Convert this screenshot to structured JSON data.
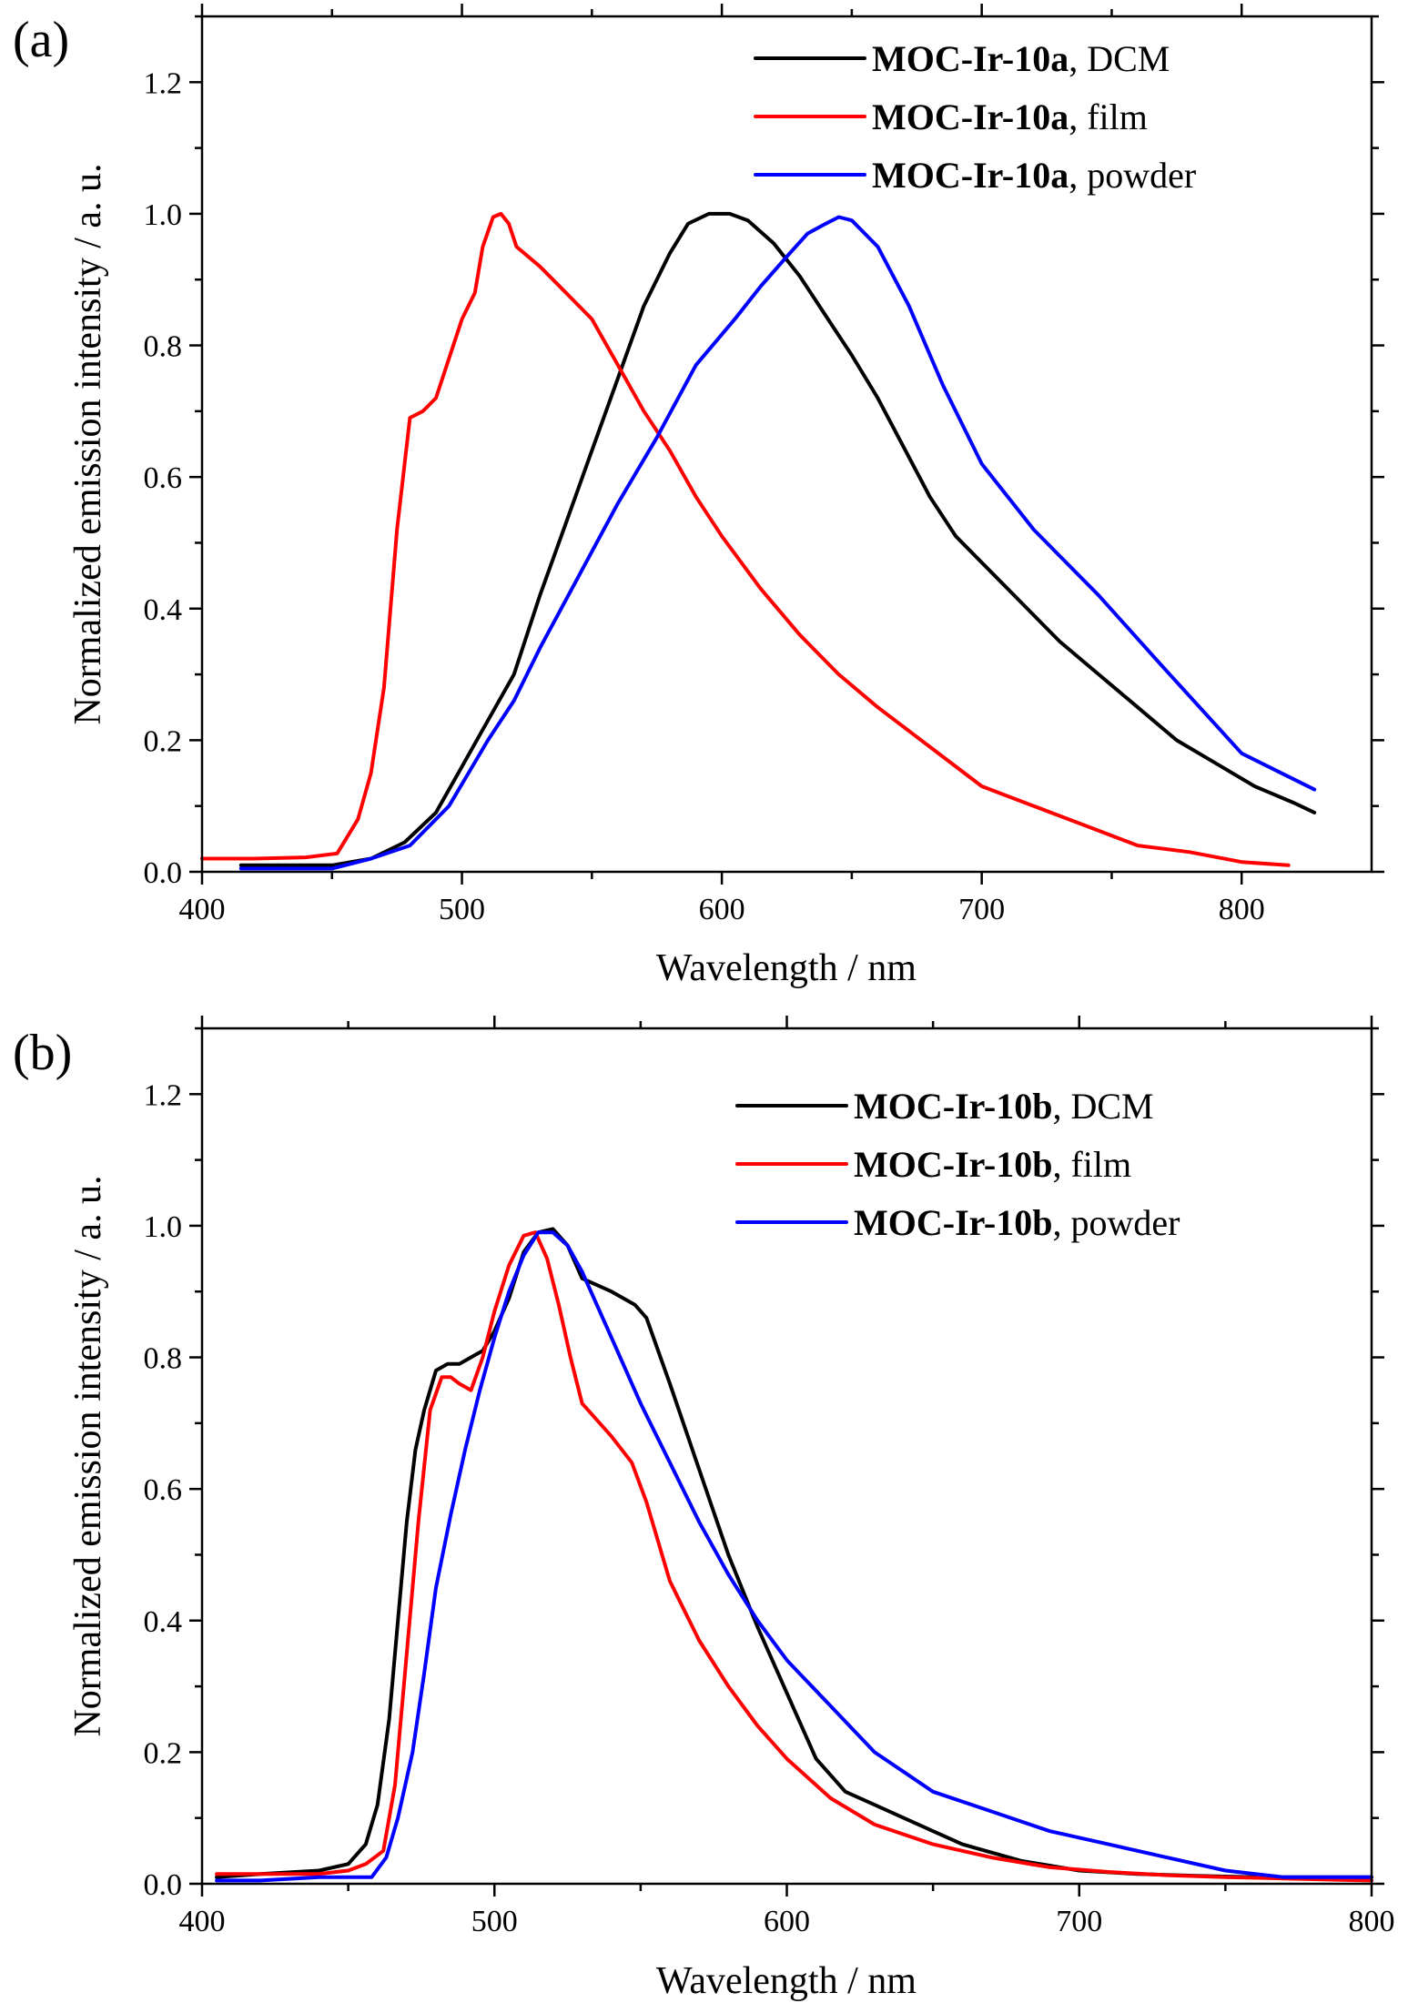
{
  "chart_data": [
    {
      "type": "line",
      "panel_label": "(a)",
      "xlabel": "Wavelength / nm",
      "ylabel": "Normalized emission intensity / a. u.",
      "xlim": [
        400,
        850
      ],
      "ylim": [
        0,
        1.3
      ],
      "xticks": [
        400,
        500,
        600,
        700,
        800
      ],
      "xtick_labels": [
        "400",
        "500",
        "600",
        "700",
        "800"
      ],
      "yticks": [
        0.0,
        0.2,
        0.4,
        0.6,
        0.8,
        1.0,
        1.2
      ],
      "ytick_labels": [
        "0.0",
        "0.2",
        "0.4",
        "0.6",
        "0.8",
        "1.0",
        "1.2"
      ],
      "legend_position": "top-right",
      "series": [
        {
          "name_bold": "MOC-Ir-10a",
          "name_suffix": ", DCM",
          "color": "#000000",
          "x": [
            415,
            430,
            450,
            465,
            478,
            490,
            500,
            510,
            520,
            530,
            540,
            550,
            560,
            570,
            580,
            587,
            595,
            603,
            610,
            620,
            630,
            640,
            650,
            660,
            670,
            680,
            690,
            700,
            715,
            730,
            745,
            760,
            775,
            790,
            805,
            820,
            828
          ],
          "y": [
            0.01,
            0.01,
            0.01,
            0.02,
            0.045,
            0.09,
            0.16,
            0.23,
            0.3,
            0.42,
            0.53,
            0.64,
            0.75,
            0.86,
            0.94,
            0.985,
            1.0,
            1.0,
            0.99,
            0.955,
            0.905,
            0.845,
            0.785,
            0.72,
            0.645,
            0.57,
            0.51,
            0.47,
            0.41,
            0.35,
            0.3,
            0.25,
            0.2,
            0.165,
            0.13,
            0.105,
            0.09
          ]
        },
        {
          "name_bold": "MOC-Ir-10a",
          "name_suffix": ", film",
          "color": "#ff0000",
          "x": [
            400,
            420,
            440,
            452,
            460,
            465,
            470,
            475,
            480,
            485,
            490,
            495,
            500,
            505,
            508,
            512,
            515,
            518,
            521,
            530,
            540,
            550,
            560,
            570,
            580,
            590,
            600,
            615,
            630,
            645,
            660,
            680,
            700,
            720,
            740,
            760,
            780,
            800,
            818
          ],
          "y": [
            0.02,
            0.02,
            0.022,
            0.028,
            0.08,
            0.15,
            0.28,
            0.52,
            0.69,
            0.7,
            0.72,
            0.78,
            0.84,
            0.88,
            0.95,
            0.995,
            1.0,
            0.985,
            0.95,
            0.92,
            0.88,
            0.84,
            0.77,
            0.7,
            0.64,
            0.57,
            0.51,
            0.43,
            0.36,
            0.3,
            0.25,
            0.19,
            0.13,
            0.1,
            0.07,
            0.04,
            0.03,
            0.015,
            0.01
          ]
        },
        {
          "name_bold": "MOC-Ir-10a",
          "name_suffix": ", powder",
          "color": "#0000ff",
          "x": [
            415,
            430,
            450,
            465,
            480,
            495,
            510,
            520,
            530,
            545,
            560,
            575,
            590,
            605,
            615,
            625,
            633,
            640,
            645,
            650,
            660,
            672,
            685,
            700,
            720,
            745,
            770,
            800,
            828
          ],
          "y": [
            0.005,
            0.005,
            0.005,
            0.02,
            0.04,
            0.1,
            0.2,
            0.26,
            0.34,
            0.45,
            0.56,
            0.66,
            0.77,
            0.84,
            0.89,
            0.935,
            0.97,
            0.985,
            0.995,
            0.99,
            0.95,
            0.86,
            0.74,
            0.62,
            0.52,
            0.42,
            0.31,
            0.18,
            0.125
          ]
        }
      ]
    },
    {
      "type": "line",
      "panel_label": "(b)",
      "xlabel": "Wavelength / nm",
      "ylabel": "Normalized emission intensity / a. u.",
      "xlim": [
        400,
        800
      ],
      "ylim": [
        0,
        1.3
      ],
      "xticks": [
        400,
        500,
        600,
        700,
        800
      ],
      "xtick_labels": [
        "400",
        "500",
        "600",
        "700",
        "800"
      ],
      "yticks": [
        0.0,
        0.2,
        0.4,
        0.6,
        0.8,
        1.0,
        1.2
      ],
      "ytick_labels": [
        "0.0",
        "0.2",
        "0.4",
        "0.6",
        "0.8",
        "1.0",
        "1.2"
      ],
      "legend_position": "top-right",
      "series": [
        {
          "name_bold": "MOC-Ir-10b",
          "name_suffix": ", DCM",
          "color": "#000000",
          "x": [
            405,
            420,
            440,
            450,
            456,
            460,
            464,
            467,
            470,
            473,
            476,
            480,
            484,
            488,
            492,
            496,
            500,
            505,
            510,
            515,
            520,
            525,
            530,
            540,
            548,
            552,
            560,
            570,
            580,
            590,
            600,
            610,
            620,
            630,
            645,
            660,
            680,
            700,
            720,
            740,
            760,
            780,
            800
          ],
          "y": [
            0.01,
            0.015,
            0.02,
            0.03,
            0.06,
            0.12,
            0.25,
            0.4,
            0.55,
            0.66,
            0.72,
            0.78,
            0.79,
            0.79,
            0.8,
            0.81,
            0.84,
            0.89,
            0.96,
            0.99,
            0.995,
            0.97,
            0.92,
            0.9,
            0.88,
            0.86,
            0.76,
            0.63,
            0.5,
            0.39,
            0.29,
            0.19,
            0.14,
            0.12,
            0.09,
            0.06,
            0.035,
            0.02,
            0.015,
            0.012,
            0.01,
            0.01,
            0.01
          ]
        },
        {
          "name_bold": "MOC-Ir-10b",
          "name_suffix": ", film",
          "color": "#ff0000",
          "x": [
            405,
            420,
            440,
            450,
            456,
            462,
            466,
            470,
            474,
            478,
            482,
            485,
            488,
            492,
            496,
            500,
            505,
            510,
            514,
            518,
            522,
            526,
            530,
            540,
            547,
            552,
            560,
            570,
            580,
            590,
            600,
            615,
            630,
            650,
            670,
            690,
            710,
            730,
            750,
            770,
            790,
            800
          ],
          "y": [
            0.015,
            0.015,
            0.015,
            0.02,
            0.03,
            0.05,
            0.15,
            0.35,
            0.55,
            0.72,
            0.77,
            0.77,
            0.76,
            0.75,
            0.8,
            0.87,
            0.94,
            0.985,
            0.99,
            0.95,
            0.88,
            0.8,
            0.73,
            0.68,
            0.64,
            0.58,
            0.46,
            0.37,
            0.3,
            0.24,
            0.19,
            0.13,
            0.09,
            0.06,
            0.04,
            0.025,
            0.018,
            0.013,
            0.01,
            0.008,
            0.006,
            0.005
          ]
        },
        {
          "name_bold": "MOC-Ir-10b",
          "name_suffix": ", powder",
          "color": "#0000ff",
          "x": [
            405,
            420,
            440,
            458,
            463,
            467,
            472,
            476,
            480,
            485,
            490,
            495,
            500,
            505,
            510,
            515,
            520,
            525,
            530,
            540,
            550,
            560,
            570,
            580,
            590,
            600,
            615,
            630,
            650,
            670,
            690,
            710,
            730,
            750,
            770,
            800
          ],
          "y": [
            0.005,
            0.005,
            0.01,
            0.01,
            0.04,
            0.1,
            0.2,
            0.32,
            0.45,
            0.56,
            0.66,
            0.75,
            0.83,
            0.9,
            0.955,
            0.99,
            0.99,
            0.97,
            0.93,
            0.83,
            0.73,
            0.64,
            0.55,
            0.47,
            0.4,
            0.34,
            0.27,
            0.2,
            0.14,
            0.11,
            0.08,
            0.06,
            0.04,
            0.02,
            0.01,
            0.01
          ]
        }
      ]
    }
  ]
}
